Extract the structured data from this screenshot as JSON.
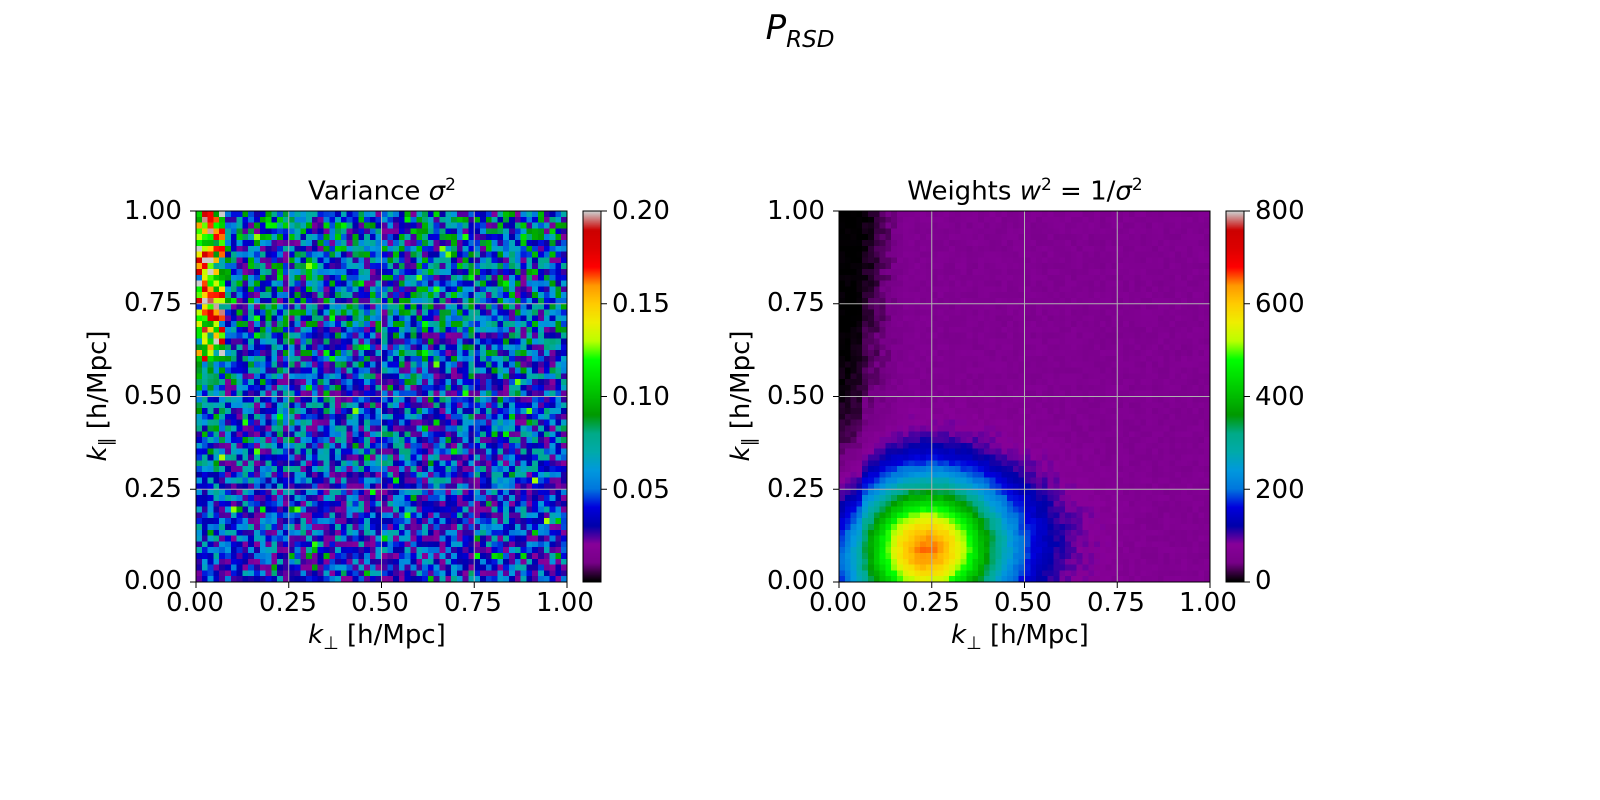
{
  "figure": {
    "suptitle_main": "P",
    "suptitle_sub": "RSD"
  },
  "chart_data": [
    {
      "type": "heatmap",
      "title_text": "Variance ",
      "title_symbol": "σ",
      "title_power": "2",
      "xlabel_symbol": "k",
      "xlabel_sub": "⊥",
      "xlabel_unit": " [h/Mpc]",
      "ylabel_symbol": "k",
      "ylabel_sub": "∥",
      "ylabel_unit": " [h/Mpc]",
      "xlim": [
        0,
        1
      ],
      "ylim": [
        0,
        1
      ],
      "xticks": [
        "0.00",
        "0.25",
        "0.50",
        "0.75",
        "1.00"
      ],
      "yticks": [
        "0.00",
        "0.25",
        "0.50",
        "0.75",
        "1.00"
      ],
      "grid": true,
      "grid_size": 64,
      "colormap": "nipy_spectral",
      "colorbar_range": [
        0,
        0.2
      ],
      "colorbar_ticks": [
        "0.05",
        "0.10",
        "0.15",
        "0.20"
      ],
      "colorbar_tick_values": [
        0.05,
        0.1,
        0.15,
        0.2
      ]
    },
    {
      "type": "heatmap",
      "title_text": "Weights ",
      "title_symbol": "w",
      "title_power": "2",
      "title_rest": " = 1/",
      "title_symbol2": "σ",
      "title_power2": "2",
      "xlabel_symbol": "k",
      "xlabel_sub": "⊥",
      "xlabel_unit": " [h/Mpc]",
      "ylabel_symbol": "k",
      "ylabel_sub": "∥",
      "ylabel_unit": " [h/Mpc]",
      "xlim": [
        0,
        1
      ],
      "ylim": [
        0,
        1
      ],
      "xticks": [
        "0.00",
        "0.25",
        "0.50",
        "0.75",
        "1.00"
      ],
      "yticks": [
        "0.00",
        "0.25",
        "0.50",
        "0.75",
        "1.00"
      ],
      "grid": true,
      "grid_size": 64,
      "colormap": "nipy_spectral",
      "colorbar_range": [
        0,
        800
      ],
      "colorbar_ticks": [
        "0",
        "200",
        "400",
        "600",
        "800"
      ],
      "colorbar_tick_values": [
        0,
        200,
        400,
        600,
        800
      ]
    }
  ]
}
